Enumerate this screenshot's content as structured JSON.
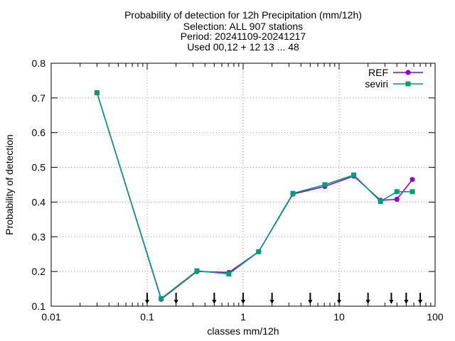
{
  "chart_data": {
    "type": "line",
    "title_lines": [
      "Probability of detection  for 12h Precipitation (mm/12h)",
      "Selection: ALL    907 stations",
      "Period: 20241109-20241217",
      "Used 00,12 + 12 13 ... 48"
    ],
    "xlabel": "classes mm/12h",
    "ylabel": "Probability of detection",
    "xscale": "log",
    "xlim": [
      0.01,
      100
    ],
    "ylim": [
      0.1,
      0.8
    ],
    "x_ticks": [
      0.01,
      0.1,
      1,
      10,
      100
    ],
    "x_tick_labels": [
      "0.01",
      "0.1",
      "1",
      "10",
      "100"
    ],
    "y_ticks": [
      0.1,
      0.2,
      0.3,
      0.4,
      0.5,
      0.6,
      0.7,
      0.8
    ],
    "y_tick_labels": [
      "0.1",
      "0.2",
      "0.3",
      "0.4",
      "0.5",
      "0.6",
      "0.7",
      "0.8"
    ],
    "grid": true,
    "legend_position": "top-right",
    "series": [
      {
        "name": "REF",
        "color": "#9400d3",
        "marker": "filled-circle",
        "x": [
          0.03,
          0.14,
          0.33,
          0.71,
          1.45,
          3.3,
          7.1,
          14.2,
          27,
          40,
          58
        ],
        "values": [
          0.715,
          0.12,
          0.2,
          0.197,
          0.257,
          0.423,
          0.445,
          0.475,
          0.405,
          0.408,
          0.465
        ]
      },
      {
        "name": "seviri",
        "color": "#009e73",
        "marker": "filled-square",
        "x": [
          0.03,
          0.14,
          0.33,
          0.71,
          1.45,
          3.3,
          7.1,
          14.2,
          27,
          40,
          58
        ],
        "values": [
          0.715,
          0.122,
          0.202,
          0.193,
          0.257,
          0.425,
          0.45,
          0.478,
          0.402,
          0.43,
          0.43
        ]
      }
    ],
    "class_boundaries": [
      0.1,
      0.2,
      0.5,
      1,
      2,
      5,
      10,
      20,
      35,
      50,
      70
    ]
  }
}
